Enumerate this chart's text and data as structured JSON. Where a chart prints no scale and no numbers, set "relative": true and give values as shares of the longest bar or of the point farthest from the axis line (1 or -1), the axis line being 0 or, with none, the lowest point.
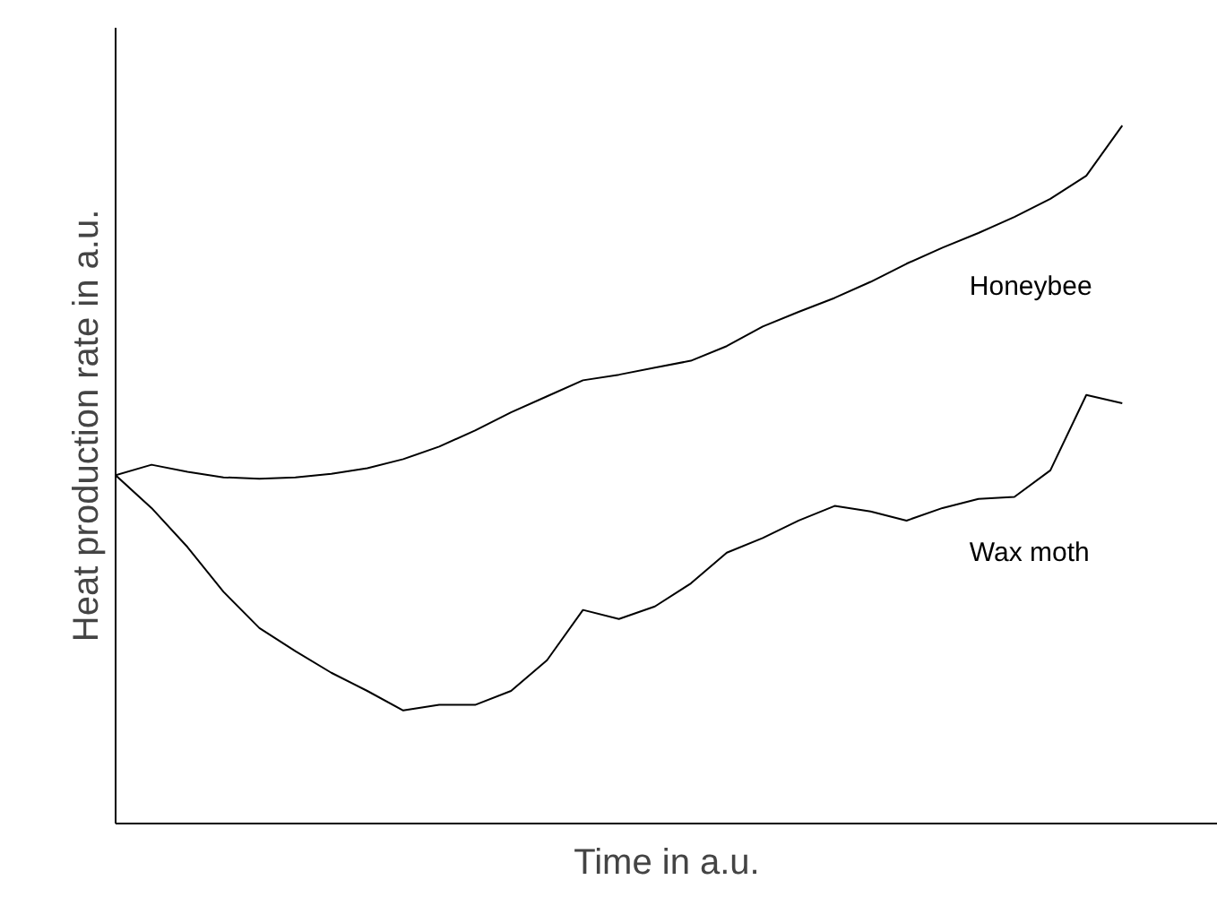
{
  "chart_data": {
    "type": "line",
    "relative": true,
    "xlabel": "Time in a.u.",
    "ylabel": "Heat production rate in a.u.",
    "tick_labels": false,
    "legend": false,
    "grid": false,
    "categories": [
      null,
      null,
      null,
      null,
      null,
      null,
      null,
      null,
      null,
      null,
      null,
      null,
      null,
      null,
      null,
      null,
      null,
      null,
      null,
      null,
      null,
      null,
      null,
      null,
      null,
      null,
      null,
      null,
      null
    ],
    "series": [
      {
        "name": "Honeybee",
        "color": "#000000",
        "values": [
          0.499,
          0.514,
          0.504,
          0.496,
          0.494,
          0.496,
          0.501,
          0.509,
          0.522,
          0.54,
          0.563,
          0.589,
          0.612,
          0.635,
          0.643,
          0.653,
          0.663,
          0.684,
          0.712,
          0.733,
          0.753,
          0.776,
          0.802,
          0.825,
          0.846,
          0.869,
          0.895,
          0.928,
          1.0
        ]
      },
      {
        "name": "Wax moth",
        "color": "#000000",
        "values": [
          0.499,
          0.452,
          0.396,
          0.332,
          0.28,
          0.247,
          0.216,
          0.19,
          0.162,
          0.17,
          0.17,
          0.19,
          0.234,
          0.306,
          0.293,
          0.311,
          0.344,
          0.388,
          0.409,
          0.434,
          0.455,
          0.447,
          0.434,
          0.452,
          0.465,
          0.468,
          0.506,
          0.614,
          0.602
        ]
      }
    ]
  }
}
